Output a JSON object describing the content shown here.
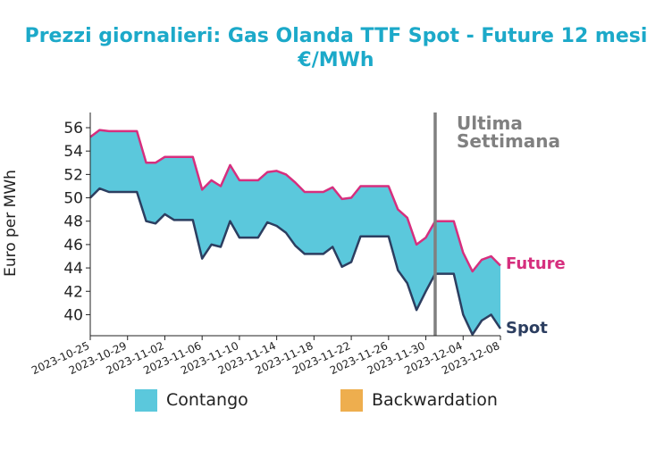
{
  "chart_data": {
    "type": "area",
    "title": "Prezzi giornalieri: Gas Olanda TTF Spot - Future 12 mesi",
    "subtitle": "€/MWh",
    "xlabel": "",
    "ylabel": "Euro per MWh",
    "ylim": [
      38.2,
      57.3
    ],
    "yticks": [
      40,
      42,
      44,
      46,
      48,
      50,
      52,
      54,
      56
    ],
    "xticks": [
      "2023-10-25",
      "2023-10-29",
      "2023-11-02",
      "2023-11-06",
      "2023-11-10",
      "2023-11-14",
      "2023-11-18",
      "2023-11-22",
      "2023-11-26",
      "2023-11-30",
      "2023-12-04",
      "2023-12-08"
    ],
    "x": [
      "2023-10-25",
      "2023-10-26",
      "2023-10-27",
      "2023-10-28",
      "2023-10-29",
      "2023-10-30",
      "2023-10-31",
      "2023-11-01",
      "2023-11-02",
      "2023-11-03",
      "2023-11-04",
      "2023-11-05",
      "2023-11-06",
      "2023-11-07",
      "2023-11-08",
      "2023-11-09",
      "2023-11-10",
      "2023-11-11",
      "2023-11-12",
      "2023-11-13",
      "2023-11-14",
      "2023-11-15",
      "2023-11-16",
      "2023-11-17",
      "2023-11-18",
      "2023-11-19",
      "2023-11-20",
      "2023-11-21",
      "2023-11-22",
      "2023-11-23",
      "2023-11-24",
      "2023-11-25",
      "2023-11-26",
      "2023-11-27",
      "2023-11-28",
      "2023-11-29",
      "2023-11-30",
      "2023-12-01",
      "2023-12-02",
      "2023-12-03",
      "2023-12-04",
      "2023-12-05",
      "2023-12-06",
      "2023-12-07",
      "2023-12-08"
    ],
    "series": [
      {
        "name": "Future",
        "color": "#d62f7e",
        "values": [
          55.2,
          55.8,
          55.7,
          55.7,
          55.7,
          55.7,
          53.0,
          53.0,
          53.5,
          53.5,
          53.5,
          53.5,
          50.7,
          51.5,
          51.0,
          52.8,
          51.5,
          51.5,
          51.5,
          52.2,
          52.3,
          52.0,
          51.3,
          50.5,
          50.5,
          50.5,
          50.9,
          49.9,
          50.0,
          51.0,
          51.0,
          51.0,
          51.0,
          49.0,
          48.3,
          46.0,
          46.6,
          48.0,
          48.0,
          48.0,
          45.3,
          43.7,
          44.7,
          45.0,
          44.2
        ]
      },
      {
        "name": "Spot",
        "color": "#2c3e60",
        "values": [
          50.0,
          50.8,
          50.5,
          50.5,
          50.5,
          50.5,
          48.0,
          47.8,
          48.6,
          48.1,
          48.1,
          48.1,
          44.8,
          46.0,
          45.8,
          48.0,
          46.6,
          46.6,
          46.6,
          47.9,
          47.6,
          47.0,
          45.9,
          45.2,
          45.2,
          45.2,
          45.8,
          44.1,
          44.5,
          46.7,
          46.7,
          46.7,
          46.7,
          43.8,
          42.7,
          40.4,
          42.0,
          43.5,
          43.5,
          43.5,
          40.0,
          38.3,
          39.5,
          40.0,
          38.8
        ]
      }
    ],
    "legend": [
      {
        "label": "Contango",
        "color": "#5bc8dc"
      },
      {
        "label": "Backwardation",
        "color": "#eeae4e"
      }
    ],
    "annotation": {
      "line1": "Ultima",
      "line2": "Settimana",
      "date": "2023-12-01",
      "color": "#808080"
    }
  }
}
